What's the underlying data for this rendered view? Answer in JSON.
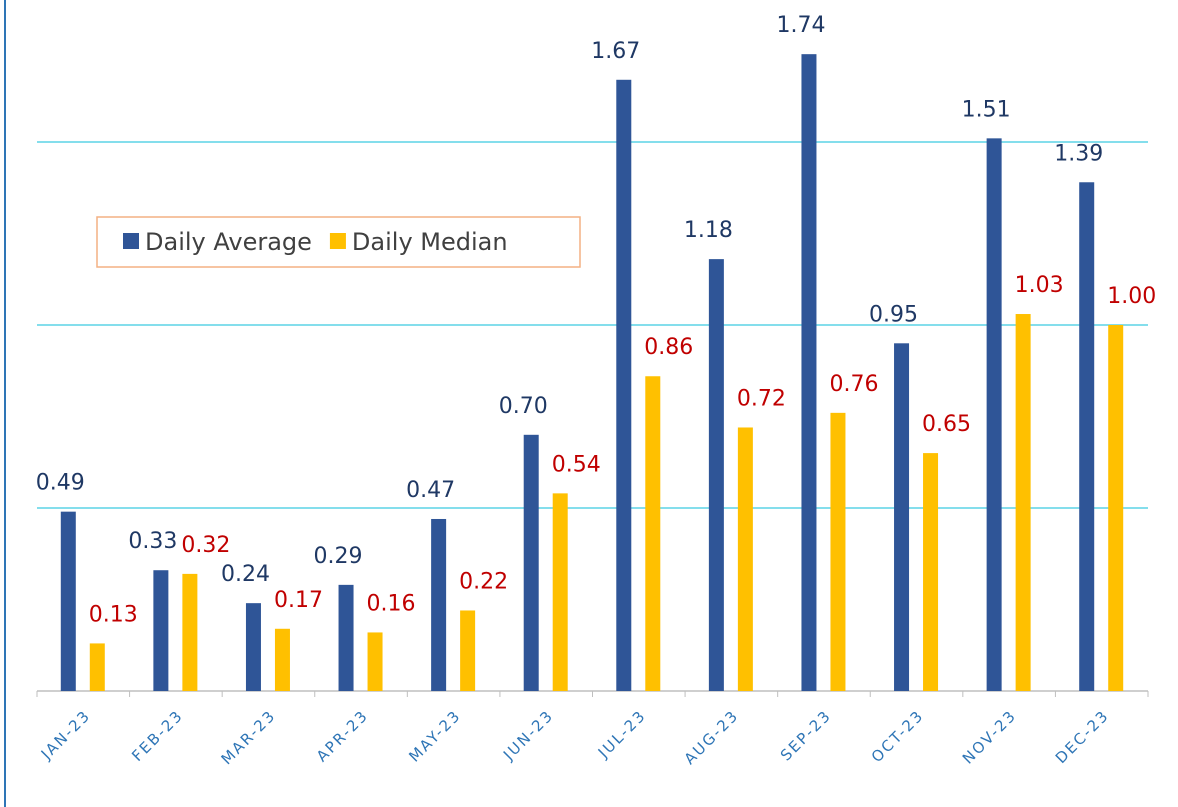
{
  "chart_data": {
    "type": "bar",
    "categories": [
      "JAN-23",
      "FEB-23",
      "MAR-23",
      "APR-23",
      "MAY-23",
      "JUN-23",
      "JUL-23",
      "AUG-23",
      "SEP-23",
      "OCT-23",
      "NOV-23",
      "DEC-23"
    ],
    "series": [
      {
        "name": "Daily Average",
        "color": "#2f5597",
        "label_color": "#1f3864",
        "values": [
          0.49,
          0.33,
          0.24,
          0.29,
          0.47,
          0.7,
          1.67,
          1.18,
          1.74,
          0.95,
          1.51,
          1.39
        ],
        "value_labels": [
          "0.49",
          "0.33",
          "0.24",
          "0.29",
          "0.47",
          "0.70",
          "1.67",
          "1.18",
          "1.74",
          "0.95",
          "1.51",
          "1.39"
        ]
      },
      {
        "name": "Daily Median",
        "color": "#ffc000",
        "label_color": "#c00000",
        "values": [
          0.13,
          0.32,
          0.17,
          0.16,
          0.22,
          0.54,
          0.86,
          0.72,
          0.76,
          0.65,
          1.03,
          1.0
        ],
        "value_labels": [
          "0.13",
          "0.32",
          "0.17",
          "0.16",
          "0.22",
          "0.54",
          "0.86",
          "0.72",
          "0.76",
          "0.65",
          "1.03",
          "1.00"
        ]
      }
    ],
    "ylim": [
      0,
      1.888
    ],
    "yticks": [
      0.5,
      1,
      1.5
    ],
    "grid": true,
    "grid_color": "#5bd3e6",
    "legend": "left"
  }
}
